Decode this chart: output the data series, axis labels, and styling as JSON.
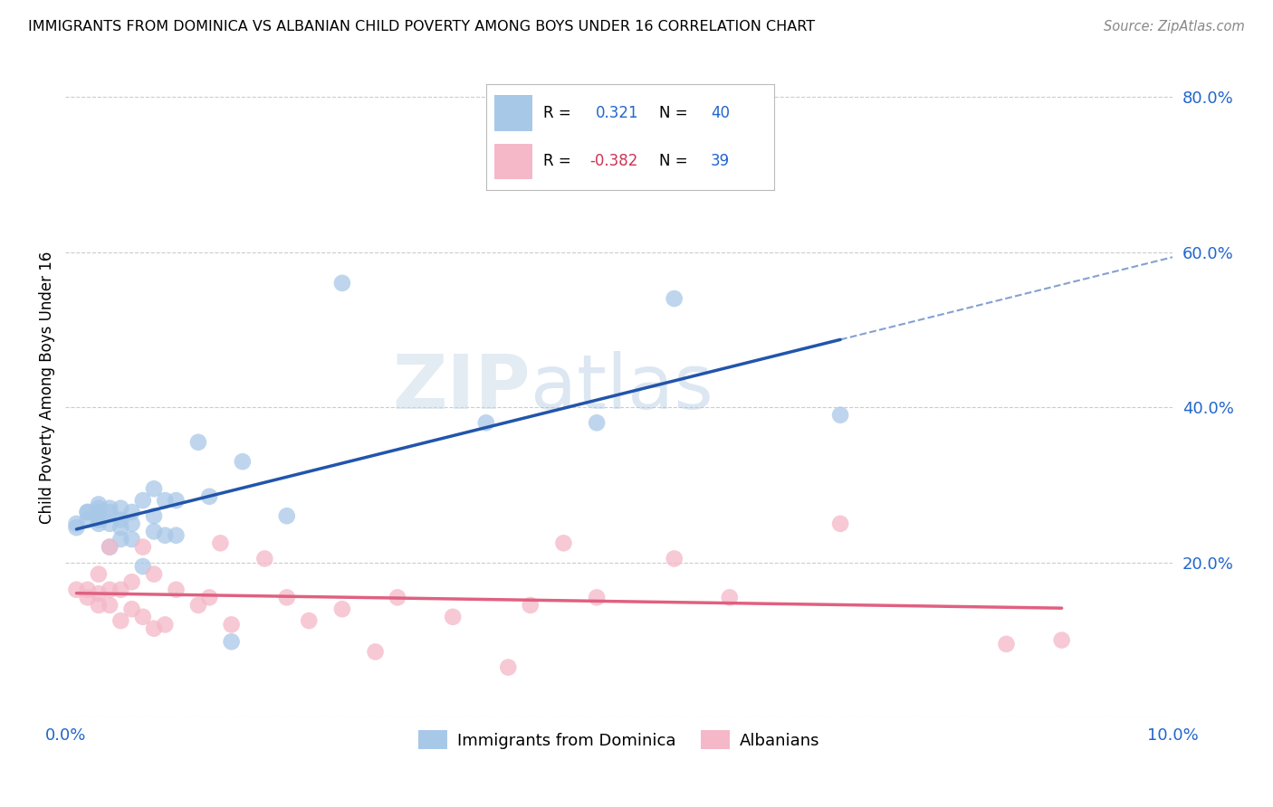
{
  "title": "IMMIGRANTS FROM DOMINICA VS ALBANIAN CHILD POVERTY AMONG BOYS UNDER 16 CORRELATION CHART",
  "source": "Source: ZipAtlas.com",
  "ylabel": "Child Poverty Among Boys Under 16",
  "xlim": [
    0.0,
    0.1
  ],
  "ylim": [
    0.0,
    0.85
  ],
  "xticks": [
    0.0,
    0.02,
    0.04,
    0.06,
    0.08,
    0.1
  ],
  "xticklabels": [
    "0.0%",
    "",
    "",
    "",
    "",
    "10.0%"
  ],
  "yticks_right": [
    0.0,
    0.2,
    0.4,
    0.6,
    0.8
  ],
  "yticklabels_right": [
    "",
    "20.0%",
    "40.0%",
    "60.0%",
    "80.0%"
  ],
  "R_blue": "0.321",
  "N_blue": "40",
  "R_pink": "-0.382",
  "N_pink": "39",
  "blue_color": "#A8C8E8",
  "pink_color": "#F4B8C8",
  "blue_line_color": "#2255AA",
  "pink_line_color": "#E06080",
  "watermark_zip": "ZIP",
  "watermark_atlas": "atlas",
  "blue_scatter_x": [
    0.001,
    0.001,
    0.002,
    0.002,
    0.002,
    0.003,
    0.003,
    0.003,
    0.003,
    0.003,
    0.004,
    0.004,
    0.004,
    0.004,
    0.005,
    0.005,
    0.005,
    0.005,
    0.006,
    0.006,
    0.006,
    0.007,
    0.007,
    0.008,
    0.008,
    0.008,
    0.009,
    0.009,
    0.01,
    0.01,
    0.012,
    0.013,
    0.015,
    0.016,
    0.02,
    0.025,
    0.038,
    0.048,
    0.055,
    0.07
  ],
  "blue_scatter_y": [
    0.245,
    0.25,
    0.255,
    0.265,
    0.265,
    0.25,
    0.255,
    0.265,
    0.27,
    0.275,
    0.22,
    0.25,
    0.265,
    0.27,
    0.23,
    0.245,
    0.255,
    0.27,
    0.23,
    0.25,
    0.265,
    0.195,
    0.28,
    0.24,
    0.26,
    0.295,
    0.235,
    0.28,
    0.235,
    0.28,
    0.355,
    0.285,
    0.098,
    0.33,
    0.26,
    0.56,
    0.38,
    0.38,
    0.54,
    0.39
  ],
  "pink_scatter_x": [
    0.001,
    0.002,
    0.002,
    0.003,
    0.003,
    0.003,
    0.004,
    0.004,
    0.004,
    0.005,
    0.005,
    0.006,
    0.006,
    0.007,
    0.007,
    0.008,
    0.008,
    0.009,
    0.01,
    0.012,
    0.013,
    0.014,
    0.015,
    0.018,
    0.02,
    0.022,
    0.025,
    0.028,
    0.03,
    0.035,
    0.04,
    0.042,
    0.045,
    0.048,
    0.055,
    0.06,
    0.07,
    0.085,
    0.09
  ],
  "pink_scatter_y": [
    0.165,
    0.155,
    0.165,
    0.145,
    0.16,
    0.185,
    0.145,
    0.165,
    0.22,
    0.125,
    0.165,
    0.14,
    0.175,
    0.13,
    0.22,
    0.115,
    0.185,
    0.12,
    0.165,
    0.145,
    0.155,
    0.225,
    0.12,
    0.205,
    0.155,
    0.125,
    0.14,
    0.085,
    0.155,
    0.13,
    0.065,
    0.145,
    0.225,
    0.155,
    0.205,
    0.155,
    0.25,
    0.095,
    0.1
  ]
}
